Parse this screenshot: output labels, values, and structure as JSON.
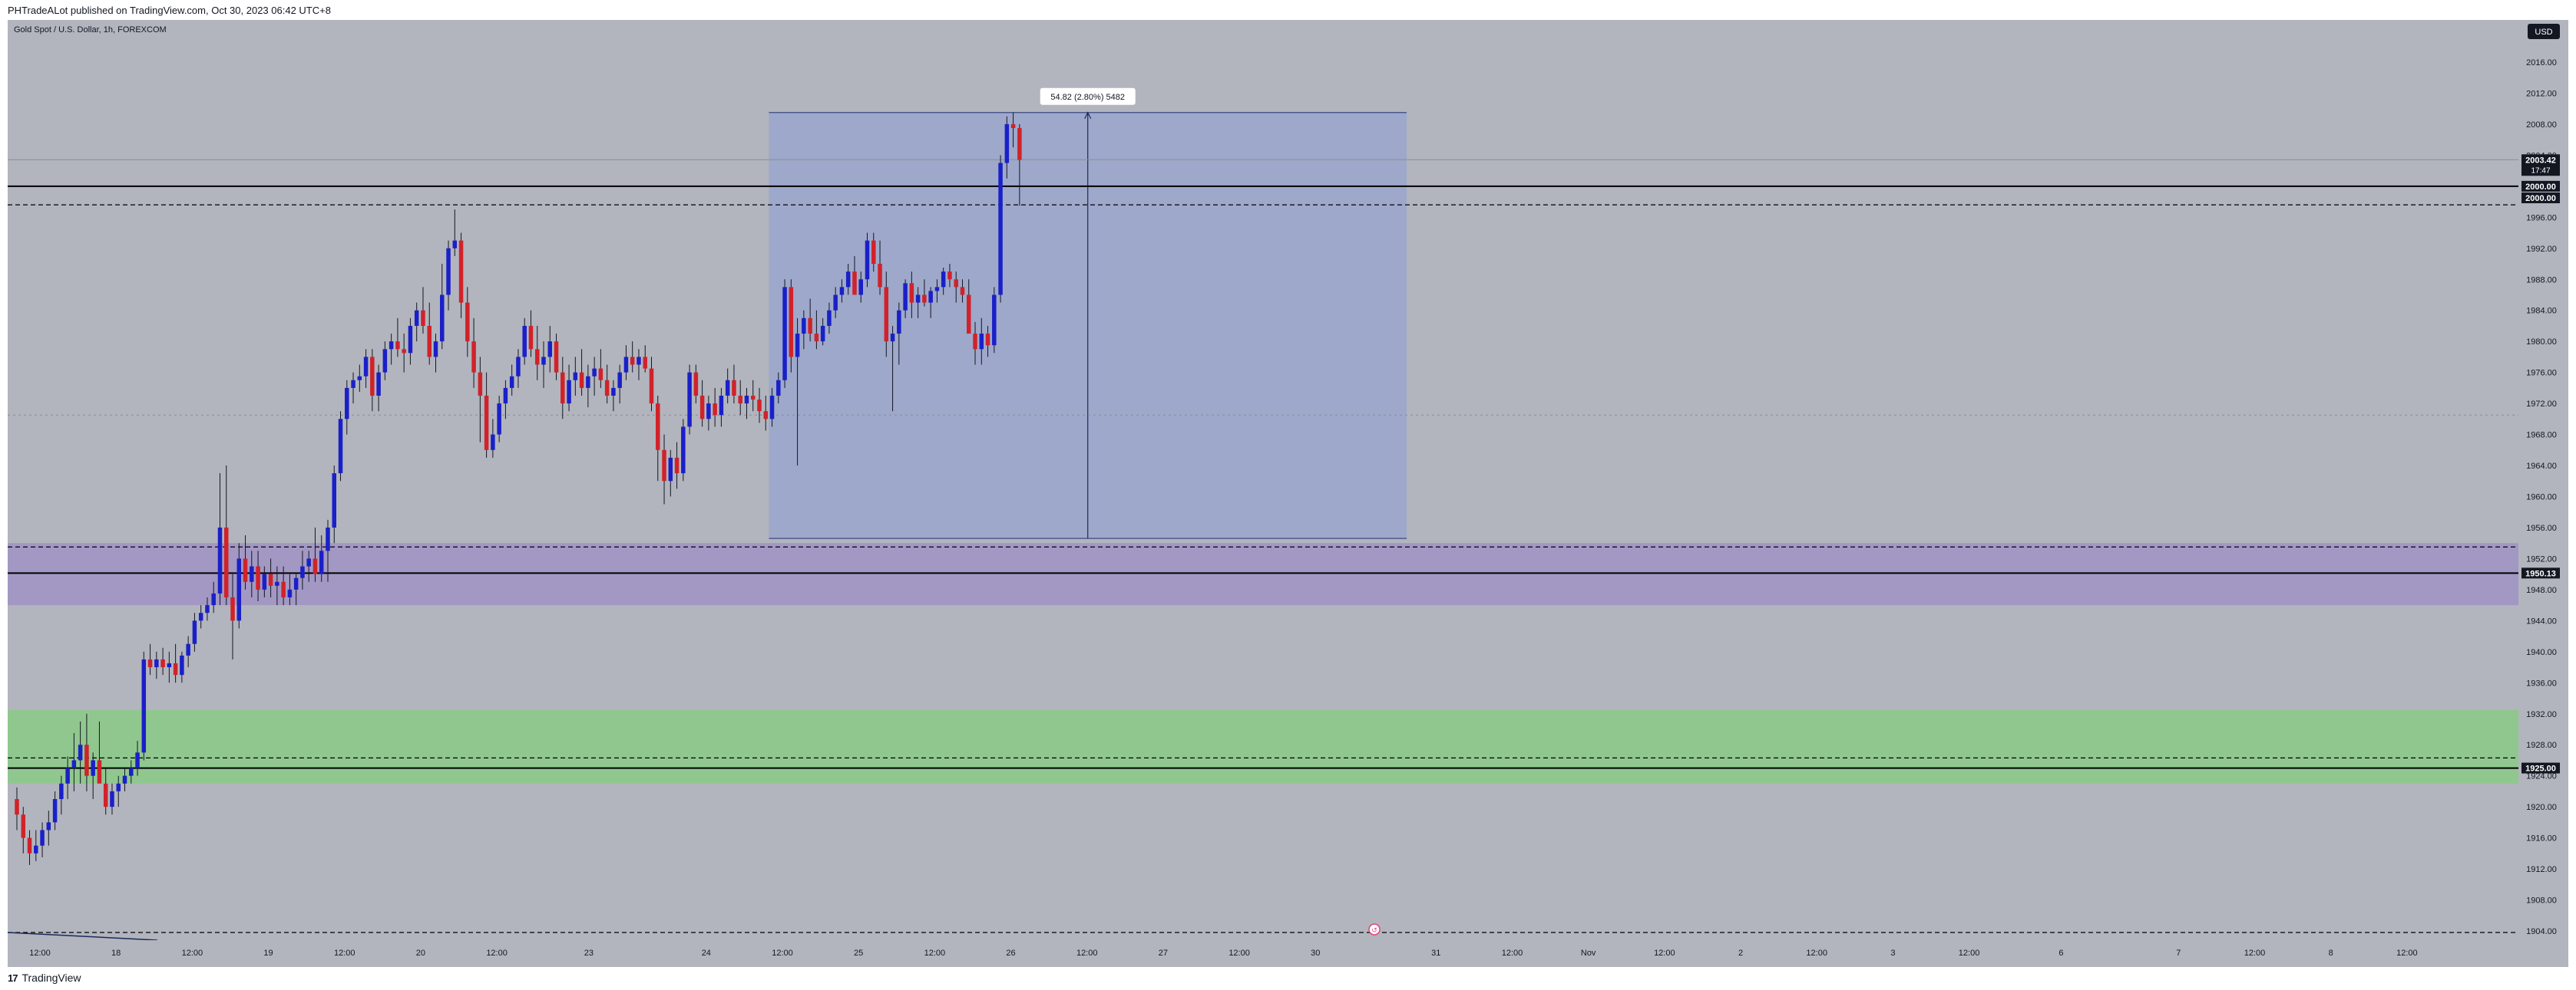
{
  "header": {
    "published": "PHTradeALot published on TradingView.com, Oct 30, 2023 06:42 UTC+8"
  },
  "footer": {
    "logo": "17",
    "brand": "TradingView"
  },
  "colors": {
    "background": "#b2b5be",
    "bull": "#1a20c8",
    "bear": "#d1222a",
    "measure_fill": "#9aa6cc",
    "purple_zone": "#a095c3",
    "green_zone": "#8cc98a",
    "line": "#000000",
    "label_dark": "#131722"
  },
  "chart_data": {
    "type": "candlestick",
    "title": "Gold Spot / U.S. Dollar, 1h, FOREXCOM",
    "currency": "USD",
    "ylim": [
      1902,
      2020
    ],
    "yticks": [
      2016,
      2012,
      2008,
      2004,
      2000,
      1996,
      1992,
      1988,
      1984,
      1980,
      1976,
      1972,
      1968,
      1964,
      1960,
      1956,
      1952,
      1948,
      1944,
      1940,
      1936,
      1932,
      1928,
      1924,
      1920,
      1916,
      1912,
      1908,
      1904
    ],
    "ytick_labels": [
      "2016.00",
      "2012.00",
      "2008.00",
      "2004.00",
      "2000.00",
      "1996.00",
      "1992.00",
      "1988.00",
      "1984.00",
      "1980.00",
      "1976.00",
      "1972.00",
      "1968.00",
      "1964.00",
      "1960.00",
      "1956.00",
      "1952.00",
      "1948.00",
      "1944.00",
      "1940.00",
      "1936.00",
      "1932.00",
      "1928.00",
      "1924.00",
      "1920.00",
      "1916.00",
      "1912.00",
      "1908.00",
      "1904.00"
    ],
    "xticks": [
      {
        "label": "12:00",
        "x": 0.0
      },
      {
        "label": "18",
        "x": 12
      },
      {
        "label": "12:00",
        "x": 24
      },
      {
        "label": "19",
        "x": 36
      },
      {
        "label": "12:00",
        "x": 48
      },
      {
        "label": "20",
        "x": 60
      },
      {
        "label": "12:00",
        "x": 72
      },
      {
        "label": "23",
        "x": 86.5
      },
      {
        "label": "24",
        "x": 105
      },
      {
        "label": "12:00",
        "x": 117
      },
      {
        "label": "25",
        "x": 129
      },
      {
        "label": "12:00",
        "x": 141
      },
      {
        "label": "26",
        "x": 153
      },
      {
        "label": "12:00",
        "x": 165
      },
      {
        "label": "27",
        "x": 177
      },
      {
        "label": "12:00",
        "x": 189
      },
      {
        "label": "30",
        "x": 201
      },
      {
        "label": "31",
        "x": 220
      },
      {
        "label": "12:00",
        "x": 232
      },
      {
        "label": "Nov",
        "x": 244
      },
      {
        "label": "12:00",
        "x": 256
      },
      {
        "label": "2",
        "x": 268
      },
      {
        "label": "12:00",
        "x": 280
      },
      {
        "label": "3",
        "x": 292
      },
      {
        "label": "12:00",
        "x": 304
      },
      {
        "label": "6",
        "x": 318.5
      },
      {
        "label": "7",
        "x": 337
      },
      {
        "label": "12:00",
        "x": 349
      },
      {
        "label": "8",
        "x": 361
      },
      {
        "label": "12:00",
        "x": 373
      }
    ],
    "candles": [
      [
        1921.0,
        1922.5,
        1917.0,
        1919.0
      ],
      [
        1919.0,
        1920.0,
        1914.0,
        1916.0
      ],
      [
        1916.0,
        1917.0,
        1912.5,
        1914.0
      ],
      [
        1914.0,
        1917.0,
        1913.0,
        1915.0
      ],
      [
        1915.0,
        1918.0,
        1913.5,
        1917.0
      ],
      [
        1917.0,
        1919.5,
        1915.0,
        1918.0
      ],
      [
        1918.0,
        1922.0,
        1917.0,
        1921.0
      ],
      [
        1921.0,
        1924.0,
        1919.0,
        1923.0
      ],
      [
        1923.0,
        1926.5,
        1921.0,
        1925.0
      ],
      [
        1925.0,
        1929.5,
        1922.0,
        1926.0
      ],
      [
        1926.0,
        1931.0,
        1923.0,
        1928.0
      ],
      [
        1928.0,
        1932.0,
        1922.0,
        1924.0
      ],
      [
        1924.0,
        1927.0,
        1921.0,
        1926.0
      ],
      [
        1926.0,
        1931.0,
        1924.0,
        1923.0
      ],
      [
        1923.0,
        1925.0,
        1919.0,
        1920.0
      ],
      [
        1920.0,
        1923.0,
        1919.0,
        1922.0
      ],
      [
        1922.0,
        1924.0,
        1920.0,
        1923.0
      ],
      [
        1923.0,
        1925.0,
        1922.0,
        1924.0
      ],
      [
        1924.0,
        1926.0,
        1923.0,
        1925.0
      ],
      [
        1925.0,
        1928.5,
        1924.0,
        1927.0
      ],
      [
        1927.0,
        1940.0,
        1926.0,
        1939.0
      ],
      [
        1939.0,
        1941.0,
        1937.0,
        1938.0
      ],
      [
        1938.0,
        1940.0,
        1936.5,
        1939.0
      ],
      [
        1939.0,
        1940.5,
        1937.0,
        1938.0
      ],
      [
        1938.0,
        1940.0,
        1936.0,
        1938.5
      ],
      [
        1938.5,
        1941.0,
        1936.0,
        1937.0
      ],
      [
        1937.0,
        1940.0,
        1936.0,
        1939.5
      ],
      [
        1939.5,
        1942.0,
        1938.0,
        1941.0
      ],
      [
        1941.0,
        1945.0,
        1940.0,
        1944.0
      ],
      [
        1944.0,
        1946.0,
        1943.0,
        1945.0
      ],
      [
        1945.0,
        1947.0,
        1944.0,
        1946.0
      ],
      [
        1946.0,
        1949.0,
        1945.0,
        1947.5
      ],
      [
        1947.5,
        1963.0,
        1946.0,
        1956.0
      ],
      [
        1956.0,
        1964.0,
        1946.0,
        1947.0
      ],
      [
        1947.0,
        1950.0,
        1939.0,
        1944.0
      ],
      [
        1944.0,
        1954.0,
        1943.0,
        1952.0
      ],
      [
        1952.0,
        1955.0,
        1948.0,
        1949.0
      ],
      [
        1949.0,
        1953.0,
        1947.0,
        1951.0
      ],
      [
        1951.0,
        1953.0,
        1946.5,
        1948.0
      ],
      [
        1948.0,
        1951.0,
        1947.0,
        1950.0
      ],
      [
        1950.0,
        1952.0,
        1947.0,
        1948.5
      ],
      [
        1948.5,
        1951.0,
        1946.0,
        1949.0
      ],
      [
        1949.0,
        1951.0,
        1946.0,
        1947.0
      ],
      [
        1947.0,
        1950.0,
        1946.0,
        1948.0
      ],
      [
        1948.0,
        1950.0,
        1946.0,
        1949.5
      ],
      [
        1949.5,
        1953.0,
        1948.0,
        1951.0
      ],
      [
        1951.0,
        1953.0,
        1949.0,
        1952.0
      ],
      [
        1952.0,
        1956.0,
        1949.0,
        1950.0
      ],
      [
        1950.0,
        1955.0,
        1949.0,
        1953.0
      ],
      [
        1953.0,
        1957.0,
        1949.0,
        1956.0
      ],
      [
        1956.0,
        1964.0,
        1954.0,
        1963.0
      ],
      [
        1963.0,
        1971.0,
        1962.0,
        1970.0
      ],
      [
        1970.0,
        1975.0,
        1968.0,
        1974.0
      ],
      [
        1974.0,
        1976.0,
        1972.0,
        1975.0
      ],
      [
        1975.0,
        1977.0,
        1973.5,
        1975.5
      ],
      [
        1975.5,
        1979.0,
        1974.0,
        1978.0
      ],
      [
        1978.0,
        1979.0,
        1971.0,
        1973.0
      ],
      [
        1973.0,
        1977.0,
        1971.0,
        1976.0
      ],
      [
        1976.0,
        1980.0,
        1975.0,
        1979.0
      ],
      [
        1979.0,
        1981.0,
        1977.0,
        1980.0
      ],
      [
        1980.0,
        1983.0,
        1978.0,
        1979.0
      ],
      [
        1979.0,
        1981.0,
        1976.0,
        1978.5
      ],
      [
        1978.5,
        1983.0,
        1977.0,
        1982.0
      ],
      [
        1982.0,
        1985.0,
        1980.0,
        1984.0
      ],
      [
        1984.0,
        1987.0,
        1981.0,
        1982.0
      ],
      [
        1982.0,
        1985.0,
        1977.0,
        1978.0
      ],
      [
        1978.0,
        1981.0,
        1976.0,
        1980.0
      ],
      [
        1980.0,
        1990.0,
        1979.0,
        1986.0
      ],
      [
        1986.0,
        1993.0,
        1984.0,
        1992.0
      ],
      [
        1992.0,
        1997.0,
        1991.0,
        1993.0
      ],
      [
        1993.0,
        1994.0,
        1983.0,
        1985.0
      ],
      [
        1985.0,
        1987.0,
        1978.0,
        1980.0
      ],
      [
        1980.0,
        1983.0,
        1974.0,
        1976.0
      ],
      [
        1976.0,
        1978.0,
        1967.0,
        1973.0
      ],
      [
        1973.0,
        1976.0,
        1965.0,
        1966.0
      ],
      [
        1966.0,
        1970.0,
        1965.0,
        1968.0
      ],
      [
        1968.0,
        1973.0,
        1967.0,
        1972.0
      ],
      [
        1972.0,
        1975.0,
        1970.0,
        1974.0
      ],
      [
        1974.0,
        1977.0,
        1973.0,
        1975.5
      ],
      [
        1975.5,
        1979.0,
        1974.0,
        1978.0
      ],
      [
        1978.0,
        1983.0,
        1977.0,
        1982.0
      ],
      [
        1982.0,
        1984.0,
        1978.0,
        1979.0
      ],
      [
        1979.0,
        1982.0,
        1975.0,
        1977.0
      ],
      [
        1977.0,
        1980.0,
        1974.0,
        1978.0
      ],
      [
        1978.0,
        1982.0,
        1976.0,
        1980.0
      ],
      [
        1980.0,
        1981.0,
        1975.0,
        1976.0
      ],
      [
        1976.0,
        1978.0,
        1970.0,
        1972.0
      ],
      [
        1972.0,
        1977.0,
        1971.0,
        1975.0
      ],
      [
        1975.0,
        1978.0,
        1973.0,
        1976.0
      ],
      [
        1976.0,
        1979.0,
        1973.0,
        1974.0
      ],
      [
        1974.0,
        1977.0,
        1971.5,
        1975.5
      ],
      [
        1975.5,
        1978.0,
        1973.0,
        1976.5
      ],
      [
        1976.5,
        1979.0,
        1974.0,
        1975.0
      ],
      [
        1975.0,
        1977.0,
        1972.0,
        1973.0
      ],
      [
        1973.0,
        1975.0,
        1971.0,
        1974.0
      ],
      [
        1974.0,
        1977.0,
        1972.0,
        1976.0
      ],
      [
        1976.0,
        1979.5,
        1975.0,
        1978.0
      ],
      [
        1978.0,
        1980.0,
        1976.0,
        1977.0
      ],
      [
        1977.0,
        1979.0,
        1975.0,
        1978.0
      ],
      [
        1978.0,
        1979.5,
        1976.0,
        1976.5
      ],
      [
        1976.5,
        1978.0,
        1971.0,
        1972.0
      ],
      [
        1972.0,
        1973.0,
        1962.0,
        1966.0
      ],
      [
        1966.0,
        1968.0,
        1959.0,
        1962.0
      ],
      [
        1962.0,
        1966.0,
        1960.0,
        1965.0
      ],
      [
        1965.0,
        1967.0,
        1961.0,
        1963.0
      ],
      [
        1963.0,
        1970.0,
        1962.0,
        1969.0
      ],
      [
        1969.0,
        1977.0,
        1968.0,
        1976.0
      ],
      [
        1976.0,
        1977.0,
        1972.0,
        1973.0
      ],
      [
        1973.0,
        1975.0,
        1969.0,
        1970.0
      ],
      [
        1970.0,
        1973.0,
        1968.5,
        1972.0
      ],
      [
        1972.0,
        1974.0,
        1969.0,
        1970.5
      ],
      [
        1970.5,
        1974.0,
        1969.0,
        1973.0
      ],
      [
        1973.0,
        1976.5,
        1972.0,
        1975.0
      ],
      [
        1975.0,
        1977.0,
        1972.0,
        1973.0
      ],
      [
        1973.0,
        1975.0,
        1970.5,
        1972.0
      ],
      [
        1972.0,
        1974.0,
        1970.0,
        1973.0
      ],
      [
        1973.0,
        1975.0,
        1971.0,
        1972.5
      ],
      [
        1972.5,
        1974.0,
        1969.5,
        1971.0
      ],
      [
        1971.0,
        1973.0,
        1968.5,
        1970.0
      ],
      [
        1970.0,
        1974.0,
        1969.0,
        1973.0
      ],
      [
        1973.0,
        1976.0,
        1972.0,
        1975.0
      ],
      [
        1975.0,
        1988.0,
        1974.0,
        1987.0
      ],
      [
        1987.0,
        1988.0,
        1976.0,
        1978.0
      ],
      [
        1978.0,
        1983.0,
        1964.0,
        1981.0
      ],
      [
        1981.0,
        1984.0,
        1979.0,
        1983.0
      ],
      [
        1983.0,
        1985.5,
        1980.0,
        1981.0
      ],
      [
        1981.0,
        1984.0,
        1979.0,
        1980.0
      ],
      [
        1980.0,
        1983.0,
        1979.5,
        1982.0
      ],
      [
        1982.0,
        1985.0,
        1981.0,
        1984.0
      ],
      [
        1984.0,
        1987.0,
        1983.0,
        1986.0
      ],
      [
        1986.0,
        1988.0,
        1985.0,
        1987.0
      ],
      [
        1987.0,
        1990.0,
        1986.0,
        1989.0
      ],
      [
        1989.0,
        1991.0,
        1987.0,
        1986.0
      ],
      [
        1986.0,
        1989.0,
        1985.0,
        1988.0
      ],
      [
        1988.0,
        1994.0,
        1987.0,
        1993.0
      ],
      [
        1993.0,
        1994.0,
        1989.0,
        1990.0
      ],
      [
        1990.0,
        1993.0,
        1986.0,
        1987.0
      ],
      [
        1987.0,
        1989.0,
        1978.0,
        1980.0
      ],
      [
        1980.0,
        1982.0,
        1971.0,
        1981.0
      ],
      [
        1981.0,
        1985.0,
        1977.0,
        1984.0
      ],
      [
        1984.0,
        1988.0,
        1983.0,
        1987.5
      ],
      [
        1987.5,
        1989.0,
        1983.0,
        1985.0
      ],
      [
        1985.0,
        1987.0,
        1983.0,
        1986.0
      ],
      [
        1986.0,
        1988.0,
        1984.5,
        1985.0
      ],
      [
        1985.0,
        1987.0,
        1983.0,
        1986.5
      ],
      [
        1986.5,
        1988.0,
        1985.0,
        1987.0
      ],
      [
        1987.0,
        1989.5,
        1986.0,
        1989.0
      ],
      [
        1989.0,
        1990.0,
        1987.0,
        1988.0
      ],
      [
        1988.0,
        1989.0,
        1985.0,
        1987.0
      ],
      [
        1987.0,
        1988.0,
        1985.0,
        1986.0
      ],
      [
        1986.0,
        1988.0,
        1982.0,
        1981.0
      ],
      [
        1981.0,
        1982.5,
        1977.0,
        1979.0
      ],
      [
        1979.0,
        1983.0,
        1977.0,
        1981.0
      ],
      [
        1981.0,
        1982.0,
        1978.0,
        1979.5
      ],
      [
        1979.5,
        1987.0,
        1978.5,
        1986.0
      ],
      [
        1986.0,
        2004.0,
        1985.0,
        2003.0
      ],
      [
        2003.0,
        2009.0,
        2001.0,
        2008.0
      ],
      [
        2008.0,
        2009.5,
        2005.0,
        2007.5
      ],
      [
        2007.5,
        2008.0,
        1997.5,
        2003.4
      ]
    ],
    "measure_box": {
      "x_from": 118.5,
      "x_to": 219.0,
      "y_from": 1954.6,
      "y_to": 2009.5,
      "label": "54.82 (2.80%) 5482"
    },
    "zones": [
      {
        "name": "purple-zone",
        "y_from": 1946.0,
        "y_to": 1954.0
      },
      {
        "name": "green-zone",
        "y_from": 1923.0,
        "y_to": 1932.5
      }
    ],
    "hlines": [
      {
        "y": 2000.0,
        "style": "solid"
      },
      {
        "y": 1997.6,
        "style": "dashed"
      },
      {
        "y": 1950.13,
        "style": "solid"
      },
      {
        "y": 1953.5,
        "style": "dashed"
      },
      {
        "y": 1925.0,
        "style": "solid"
      },
      {
        "y": 1926.3,
        "style": "dashed"
      },
      {
        "y": 1903.8,
        "style": "dashed"
      },
      {
        "y": 1970.5,
        "style": "dotted"
      }
    ],
    "price_labels": [
      {
        "y": 2003.42,
        "text": "2003.42",
        "sub": "17:47"
      },
      {
        "y": 2000.0,
        "text": "2000.00"
      },
      {
        "y": 1998.5,
        "text": "2000.00"
      },
      {
        "y": 1950.13,
        "text": "1950.13"
      },
      {
        "y": 1925.0,
        "text": "1925.00"
      }
    ]
  }
}
